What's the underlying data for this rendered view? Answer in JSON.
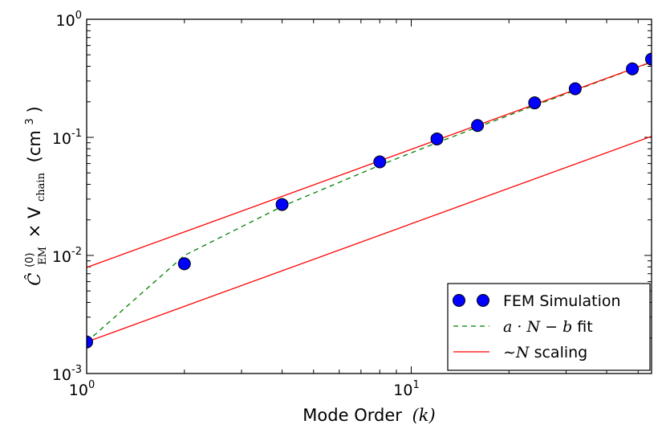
{
  "chart_data": {
    "type": "scatter",
    "xscale": "log",
    "yscale": "log",
    "xlim": [
      1,
      55
    ],
    "ylim": [
      0.001,
      1
    ],
    "xlabel": "Mode Order",
    "xlabel_var": "(k)",
    "ylabel_prefix": "Ĉ",
    "ylabel_sup": "(0)",
    "ylabel_sub": "EM",
    "ylabel_times": "× V",
    "ylabel_sub2": "chain",
    "ylabel_unit": "(cm",
    "ylabel_unit_exp": "3",
    "ylabel_unit_close": ")",
    "x_ticks": [
      {
        "value": 1,
        "base": "10",
        "exp": "0"
      },
      {
        "value": 10,
        "base": "10",
        "exp": "1"
      }
    ],
    "y_ticks": [
      {
        "value": 0.001,
        "base": "10",
        "exp": "-3"
      },
      {
        "value": 0.01,
        "base": "10",
        "exp": "-2"
      },
      {
        "value": 0.1,
        "base": "10",
        "exp": "-1"
      },
      {
        "value": 1,
        "base": "10",
        "exp": "0"
      }
    ],
    "series": [
      {
        "name": "FEM Simulation",
        "kind": "markers",
        "color": "#0000ff",
        "x": [
          1,
          2,
          4,
          8,
          12,
          16,
          24,
          32,
          48,
          55
        ],
        "y": [
          0.00185,
          0.0085,
          0.027,
          0.062,
          0.097,
          0.126,
          0.196,
          0.258,
          0.38,
          0.46
        ]
      },
      {
        "name_math": "a · N − b",
        "name_suffix": " fit",
        "kind": "dashed",
        "color": "#008000",
        "x": [
          1,
          2,
          4,
          8,
          12,
          16,
          24,
          32,
          48,
          55
        ],
        "y": [
          0.00185,
          0.01,
          0.026,
          0.058,
          0.09,
          0.122,
          0.186,
          0.25,
          0.378,
          0.434
        ]
      },
      {
        "name_math": "∼N",
        "name_suffix": " scaling",
        "kind": "line",
        "color": "#ff0000",
        "x": [
          1,
          55
        ],
        "y": [
          0.0079,
          0.435
        ]
      },
      {
        "kind": "line",
        "color": "#ff0000",
        "x": [
          1,
          55
        ],
        "y": [
          0.00185,
          0.102
        ]
      }
    ],
    "legend": {
      "position": "lower-right",
      "entries": [
        "FEM Simulation",
        "a · N − b fit",
        "∼N scaling"
      ]
    }
  }
}
